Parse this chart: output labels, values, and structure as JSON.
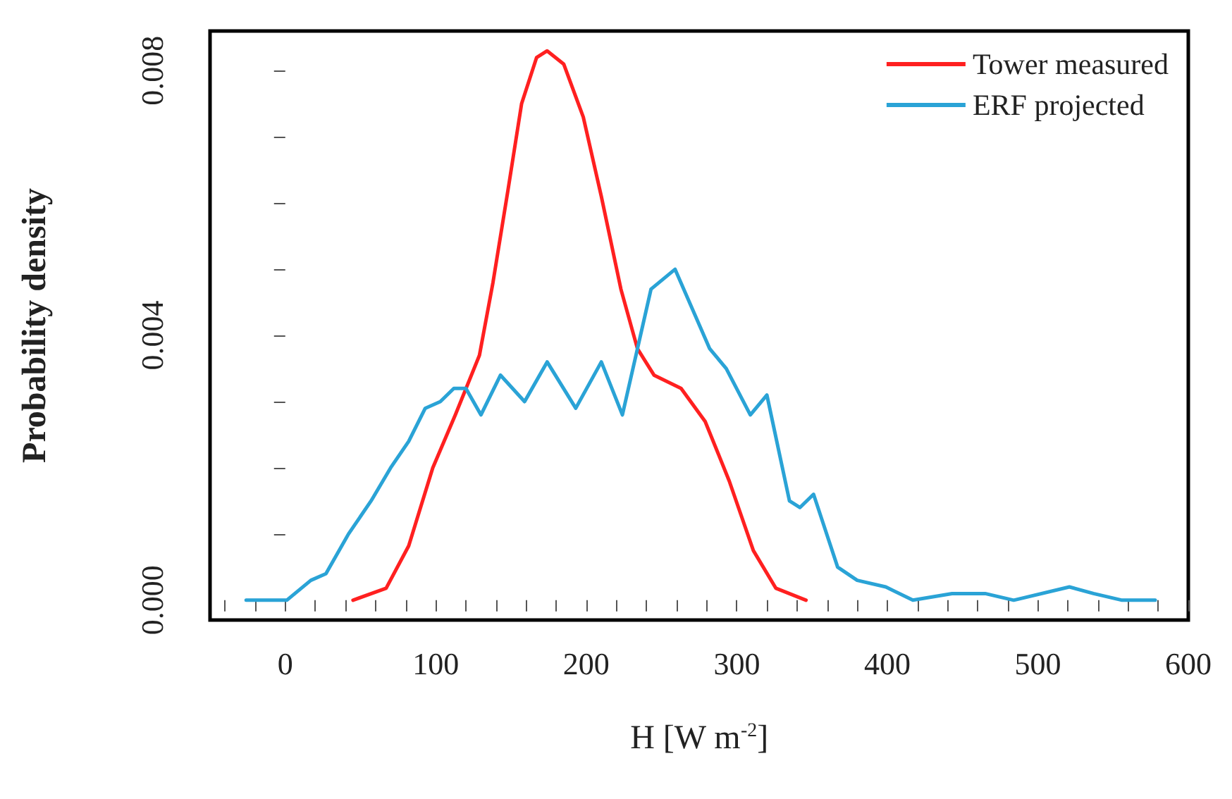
{
  "chart_data": {
    "type": "line",
    "xlabel": "H [W m$^{-2}$]",
    "ylabel": "Probability density",
    "xlim": [
      -50,
      600
    ],
    "xticks": [
      {
        "value": -40,
        "label": null
      },
      {
        "value": -20,
        "label": null
      },
      0,
      {
        "value": 20,
        "label": null
      },
      {
        "value": 40,
        "label": null
      },
      {
        "value": 60,
        "label": null
      },
      {
        "value": 80,
        "label": null
      },
      100,
      {
        "value": 120,
        "label": null
      },
      {
        "value": 140,
        "label": null
      },
      {
        "value": 160,
        "label": null
      },
      {
        "value": 180,
        "label": null
      },
      200,
      {
        "value": 220,
        "label": null
      },
      {
        "value": 240,
        "label": null
      },
      {
        "value": 260,
        "label": null
      },
      {
        "value": 280,
        "label": null
      },
      300,
      {
        "value": 320,
        "label": null
      },
      {
        "value": 340,
        "label": null
      },
      {
        "value": 360,
        "label": null
      },
      {
        "value": 380,
        "label": null
      },
      400,
      {
        "value": 420,
        "label": null
      },
      {
        "value": 440,
        "label": null
      },
      {
        "value": 460,
        "label": null
      },
      {
        "value": 480,
        "label": null
      },
      500,
      {
        "value": 520,
        "label": null
      },
      {
        "value": 540,
        "label": null
      },
      {
        "value": 560,
        "label": null
      },
      {
        "value": 580,
        "label": null
      },
      600
    ],
    "ylim": [
      -0.0003,
      0.0086
    ],
    "yticks": [
      {
        "value": 0,
        "label": "0.000"
      },
      {
        "value": 0.001,
        "label": null
      },
      {
        "value": 0.002,
        "label": null
      },
      {
        "value": 0.003,
        "label": null
      },
      {
        "value": 0.004,
        "label": "0.004"
      },
      {
        "value": 0.005,
        "label": null
      },
      {
        "value": 0.006,
        "label": null
      },
      {
        "value": 0.007,
        "label": null
      },
      {
        "value": 0.008,
        "label": "0.008"
      }
    ],
    "grid": false,
    "legend": "top right",
    "line_style": "solid",
    "marker": "none",
    "series": [
      {
        "name": "Tower measured",
        "color": "#ff2020",
        "x": [
          45,
          67,
          82,
          98,
          113,
          129,
          138,
          148,
          157,
          167,
          174,
          185,
          198,
          210,
          223,
          234,
          245,
          263,
          279,
          295,
          311,
          326,
          346
        ],
        "values": [
          0,
          0.00018,
          0.00082,
          0.002,
          0.0028,
          0.0037,
          0.0048,
          0.0062,
          0.0075,
          0.0082,
          0.0083,
          0.0081,
          0.0073,
          0.0061,
          0.0047,
          0.0038,
          0.0034,
          0.0032,
          0.0027,
          0.0018,
          0.00075,
          0.00018,
          0
        ]
      },
      {
        "name": "ERF projected",
        "color": "#2aa3d6",
        "x": [
          -26,
          1,
          17,
          27,
          42,
          57,
          70,
          82,
          93,
          103,
          112,
          120,
          130,
          143,
          159,
          174,
          193,
          210,
          224,
          234,
          243,
          259,
          282,
          293,
          309,
          320,
          335,
          342,
          351,
          367,
          380,
          399,
          417,
          443,
          465,
          484,
          521,
          537,
          556,
          578
        ],
        "values": [
          0,
          0,
          0.0003,
          0.0004,
          0.001,
          0.0015,
          0.002,
          0.0024,
          0.0029,
          0.003,
          0.0032,
          0.0032,
          0.0028,
          0.0034,
          0.003,
          0.0036,
          0.0029,
          0.0036,
          0.0028,
          0.0038,
          0.0047,
          0.005,
          0.0038,
          0.0035,
          0.0028,
          0.0031,
          0.0015,
          0.0014,
          0.0016,
          0.0005,
          0.0003,
          0.0002,
          0,
          0.0001,
          0.0001,
          0,
          0.0002,
          0.0001,
          0,
          0
        ]
      }
    ]
  }
}
